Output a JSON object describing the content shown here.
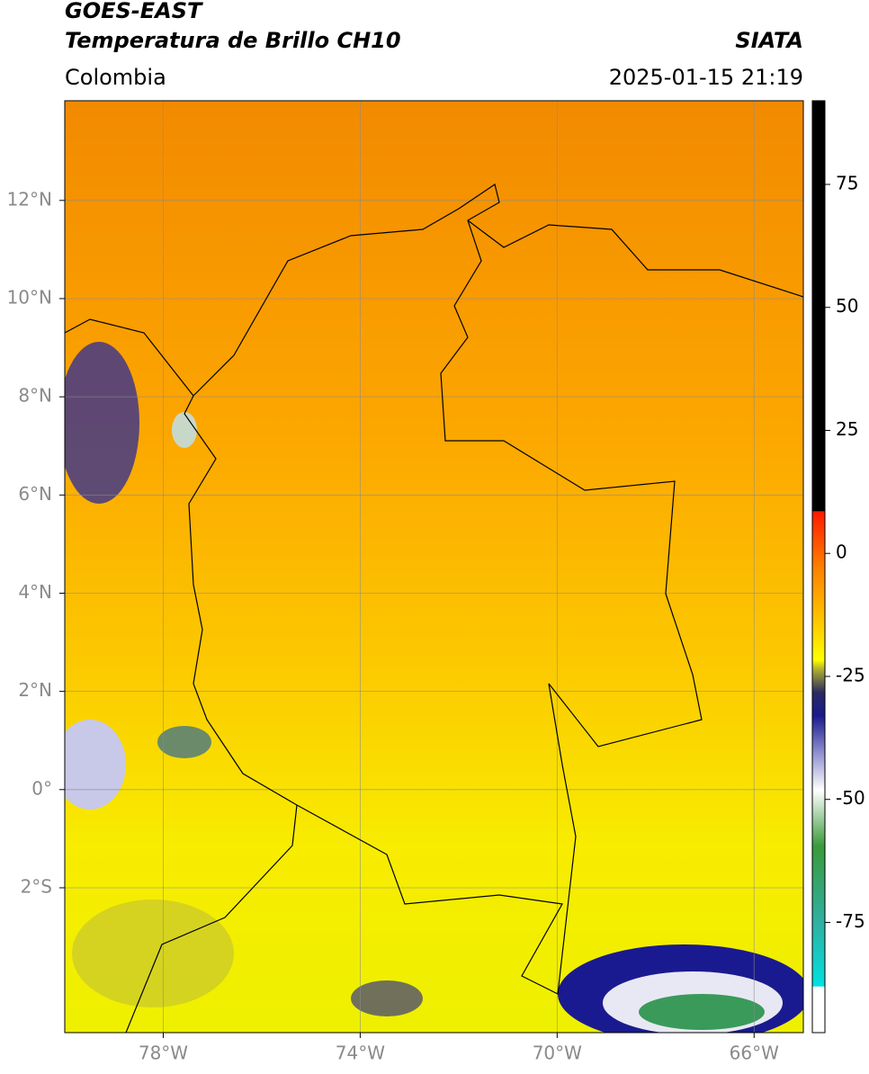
{
  "header": {
    "source": "GOES-EAST",
    "title": "Temperatura de Brillo CH10",
    "agency": "SIATA",
    "region": "Colombia",
    "datetime": "2025-01-15 21:19"
  },
  "map": {
    "lon_range": [
      -80,
      -65
    ],
    "lat_range": [
      -4.95,
      14.03
    ],
    "lon_ticks": [
      {
        "value": -78,
        "label": "78°W"
      },
      {
        "value": -74,
        "label": "74°W"
      },
      {
        "value": -70,
        "label": "70°W"
      },
      {
        "value": -66,
        "label": "66°W"
      }
    ],
    "lat_ticks": [
      {
        "value": 12,
        "label": "12°N"
      },
      {
        "value": 10,
        "label": "10°N"
      },
      {
        "value": 8,
        "label": "8°N"
      },
      {
        "value": 6,
        "label": "6°N"
      },
      {
        "value": 4,
        "label": "4°N"
      },
      {
        "value": 2,
        "label": "2°N"
      },
      {
        "value": 0,
        "label": "0°"
      },
      {
        "value": -2,
        "label": "2°S"
      }
    ]
  },
  "colorbar": {
    "range": [
      -97.4,
      92
    ],
    "ticks": [
      75,
      50,
      25,
      0,
      -25,
      -50,
      -75
    ]
  }
}
